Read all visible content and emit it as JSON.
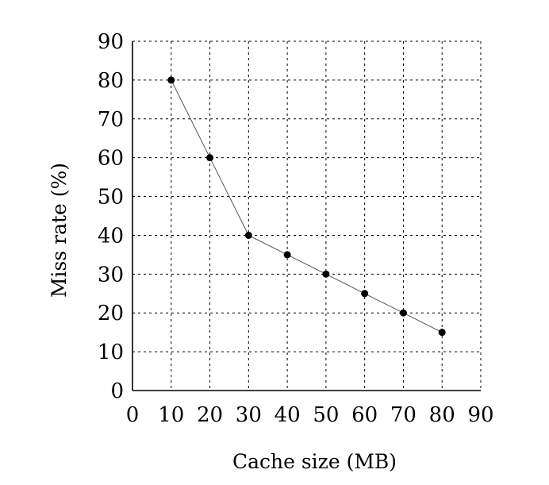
{
  "chart_data": {
    "type": "line",
    "title": "",
    "xlabel": "Cache size (MB)",
    "ylabel": "Miss rate (%)",
    "xlim": [
      0,
      90
    ],
    "ylim": [
      0,
      90
    ],
    "xticks": [
      0,
      10,
      20,
      30,
      40,
      50,
      60,
      70,
      80,
      90
    ],
    "yticks": [
      0,
      10,
      20,
      30,
      40,
      50,
      60,
      70,
      80,
      90
    ],
    "grid": true,
    "series": [
      {
        "name": "Miss rate",
        "x": [
          10,
          20,
          30,
          40,
          50,
          60,
          70,
          80
        ],
        "y": [
          80,
          60,
          40,
          35,
          30,
          25,
          20,
          15
        ]
      }
    ]
  }
}
